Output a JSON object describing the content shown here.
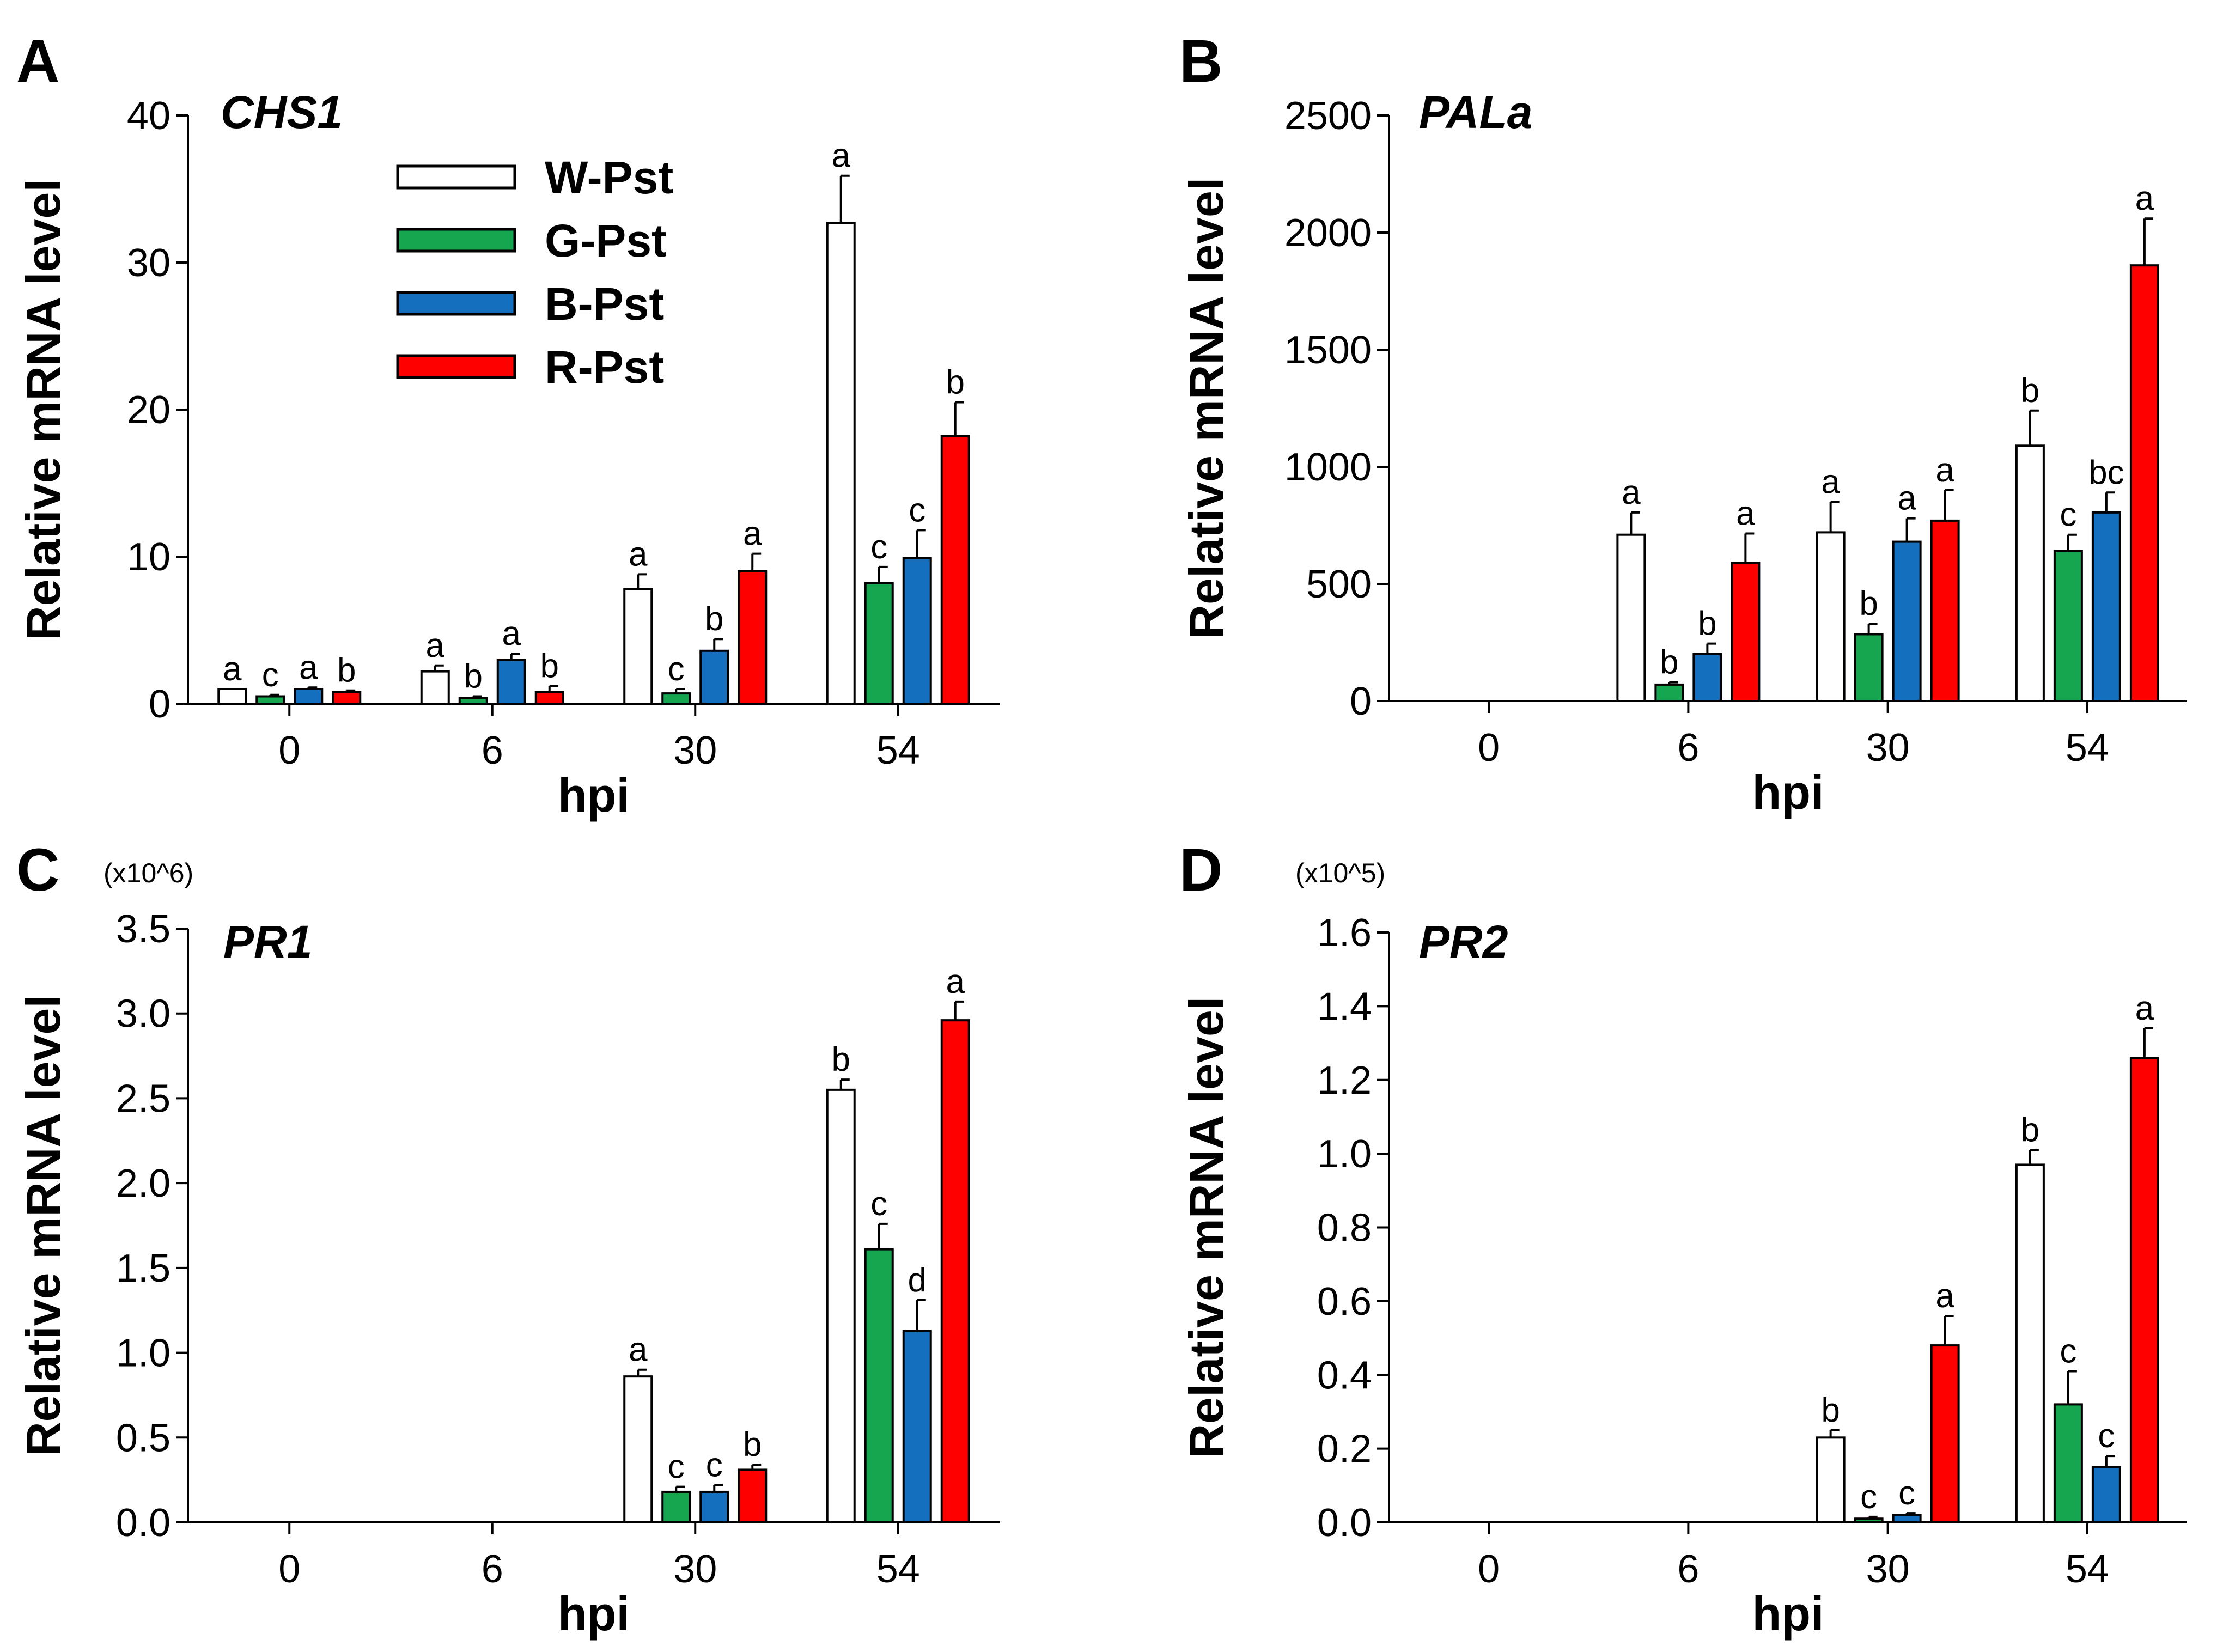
{
  "chart_data": [
    {
      "type": "bar",
      "panel": "A",
      "title": "CHS1",
      "multiplier": "",
      "xlabel": "hpi",
      "ylabel": "Relative mRNA level",
      "categories": [
        "0",
        "6",
        "30",
        "54"
      ],
      "ylim": [
        0,
        40
      ],
      "yticks": [
        0,
        10,
        20,
        30,
        40
      ],
      "ytick_labels": [
        "0",
        "10",
        "20",
        "30",
        "40"
      ],
      "series": [
        {
          "name": "W-Pst",
          "color": "#ffffff",
          "values": [
            1.0,
            2.2,
            7.8,
            32.7
          ],
          "errors": [
            0.0,
            0.4,
            1.0,
            3.2
          ],
          "letters": [
            "a",
            "a",
            "a",
            "a"
          ]
        },
        {
          "name": "G-Pst",
          "color": "#16a64f",
          "values": [
            0.5,
            0.4,
            0.7,
            8.2
          ],
          "errors": [
            0.1,
            0.1,
            0.3,
            1.1
          ],
          "letters": [
            "c",
            "b",
            "c",
            "c"
          ]
        },
        {
          "name": "B-Pst",
          "color": "#156fbf",
          "values": [
            1.0,
            3.0,
            3.6,
            9.9
          ],
          "errors": [
            0.1,
            0.4,
            0.8,
            1.9
          ],
          "letters": [
            "a",
            "a",
            "b",
            "c"
          ]
        },
        {
          "name": "R-Pst",
          "color": "#ff0000",
          "values": [
            0.8,
            0.8,
            9.0,
            18.2
          ],
          "errors": [
            0.1,
            0.4,
            1.2,
            2.3
          ],
          "letters": [
            "b",
            "b",
            "a",
            "b"
          ]
        }
      ]
    },
    {
      "type": "bar",
      "panel": "B",
      "title": "PALa",
      "multiplier": "",
      "xlabel": "hpi",
      "ylabel": "Relative mRNA level",
      "categories": [
        "0",
        "6",
        "30",
        "54"
      ],
      "ylim": [
        0,
        2500
      ],
      "yticks": [
        0,
        500,
        1000,
        1500,
        2000,
        2500
      ],
      "ytick_labels": [
        "0",
        "500",
        "1000",
        "1500",
        "2000",
        "2500"
      ],
      "series": [
        {
          "name": "W-Pst",
          "color": "#ffffff",
          "values": [
            0,
            710,
            720,
            1090
          ],
          "errors": [
            0,
            95,
            130,
            150
          ],
          "letters": [
            "",
            "a",
            "a",
            "b"
          ]
        },
        {
          "name": "G-Pst",
          "color": "#16a64f",
          "values": [
            0,
            70,
            285,
            640
          ],
          "errors": [
            0,
            10,
            45,
            70
          ],
          "letters": [
            "",
            "b",
            "b",
            "c"
          ]
        },
        {
          "name": "B-Pst",
          "color": "#156fbf",
          "values": [
            0,
            200,
            680,
            805
          ],
          "errors": [
            0,
            45,
            100,
            85
          ],
          "letters": [
            "",
            "b",
            "a",
            "bc"
          ]
        },
        {
          "name": "R-Pst",
          "color": "#ff0000",
          "values": [
            0,
            590,
            770,
            1860
          ],
          "errors": [
            0,
            125,
            130,
            200
          ],
          "letters": [
            "",
            "a",
            "a",
            "a"
          ]
        }
      ]
    },
    {
      "type": "bar",
      "panel": "C",
      "title": "PR1",
      "multiplier": "(x10^6)",
      "xlabel": "hpi",
      "ylabel": "Relative mRNA level",
      "categories": [
        "0",
        "6",
        "30",
        "54"
      ],
      "ylim": [
        0,
        3.5
      ],
      "yticks": [
        0,
        0.5,
        1.0,
        1.5,
        2.0,
        2.5,
        3.0,
        3.5
      ],
      "ytick_labels": [
        "0.0",
        "0.5",
        "1.0",
        "1.5",
        "2.0",
        "2.5",
        "3.0",
        "3.5"
      ],
      "series": [
        {
          "name": "W-Pst",
          "color": "#ffffff",
          "values": [
            0,
            0,
            0.86,
            2.55
          ],
          "errors": [
            0,
            0,
            0.04,
            0.06
          ],
          "letters": [
            "",
            "",
            "a",
            "b"
          ]
        },
        {
          "name": "G-Pst",
          "color": "#16a64f",
          "values": [
            0,
            0,
            0.18,
            1.61
          ],
          "errors": [
            0,
            0,
            0.03,
            0.15
          ],
          "letters": [
            "",
            "",
            "c",
            "c"
          ]
        },
        {
          "name": "B-Pst",
          "color": "#156fbf",
          "values": [
            0,
            0,
            0.18,
            1.13
          ],
          "errors": [
            0,
            0,
            0.04,
            0.18
          ],
          "letters": [
            "",
            "",
            "c",
            "d"
          ]
        },
        {
          "name": "R-Pst",
          "color": "#ff0000",
          "values": [
            0,
            0,
            0.31,
            2.96
          ],
          "errors": [
            0,
            0,
            0.03,
            0.11
          ],
          "letters": [
            "",
            "",
            "b",
            "a"
          ]
        }
      ]
    },
    {
      "type": "bar",
      "panel": "D",
      "title": "PR2",
      "multiplier": "(x10^5)",
      "xlabel": "hpi",
      "ylabel": "Relative mRNA level",
      "categories": [
        "0",
        "6",
        "30",
        "54"
      ],
      "ylim": [
        0,
        1.6
      ],
      "yticks": [
        0,
        0.2,
        0.4,
        0.6,
        0.8,
        1.0,
        1.2,
        1.4,
        1.6
      ],
      "ytick_labels": [
        "0.0",
        "0.2",
        "0.4",
        "0.6",
        "0.8",
        "1.0",
        "1.2",
        "1.4",
        "1.6"
      ],
      "series": [
        {
          "name": "W-Pst",
          "color": "#ffffff",
          "values": [
            0,
            0,
            0.23,
            0.97
          ],
          "errors": [
            0,
            0,
            0.02,
            0.04
          ],
          "letters": [
            "",
            "",
            "b",
            "b"
          ]
        },
        {
          "name": "G-Pst",
          "color": "#16a64f",
          "values": [
            0,
            0,
            0.01,
            0.32
          ],
          "errors": [
            0,
            0,
            0.005,
            0.09
          ],
          "letters": [
            "",
            "",
            "c",
            "c"
          ]
        },
        {
          "name": "B-Pst",
          "color": "#156fbf",
          "values": [
            0,
            0,
            0.02,
            0.15
          ],
          "errors": [
            0,
            0,
            0.005,
            0.03
          ],
          "letters": [
            "",
            "",
            "c",
            "c"
          ]
        },
        {
          "name": "R-Pst",
          "color": "#ff0000",
          "values": [
            0,
            0,
            0.48,
            1.26
          ],
          "errors": [
            0,
            0,
            0.08,
            0.08
          ],
          "letters": [
            "",
            "",
            "a",
            "a"
          ]
        }
      ]
    }
  ],
  "legend": {
    "panel": "A",
    "entries": [
      {
        "label": "W-Pst",
        "color": "#ffffff"
      },
      {
        "label": "G-Pst",
        "color": "#16a64f"
      },
      {
        "label": "B-Pst",
        "color": "#156fbf"
      },
      {
        "label": "R-Pst",
        "color": "#ff0000"
      }
    ]
  }
}
